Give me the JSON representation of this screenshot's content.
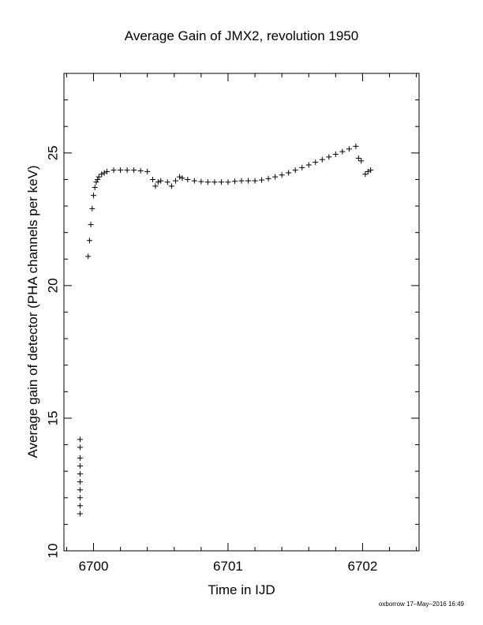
{
  "chart_data": {
    "type": "scatter",
    "title": "Average Gain of JMX2, revolution 1950",
    "xlabel": "Time in IJD",
    "ylabel": "Average gain of detector (PHA channels per keV)",
    "xlim": [
      6699.78,
      6702.42
    ],
    "ylim": [
      10,
      28
    ],
    "x_ticks": [
      6700,
      6701,
      6702
    ],
    "x_tick_labels": [
      "6700",
      "6701",
      "6702"
    ],
    "y_ticks": [
      10,
      15,
      20,
      25
    ],
    "y_tick_labels": [
      "10",
      "15",
      "20",
      "25"
    ],
    "grid": false,
    "legend": "none",
    "marker": "plus",
    "color": "#000000",
    "series": [
      {
        "x": [
          6699.9,
          6699.9,
          6699.9,
          6699.9,
          6699.9,
          6699.9,
          6699.9,
          6699.9,
          6699.9,
          6699.9,
          6699.96,
          6699.97,
          6699.98,
          6699.99,
          6700.0,
          6700.01,
          6700.02,
          6700.03,
          6700.04,
          6700.06,
          6700.08,
          6700.1,
          6700.15,
          6700.2,
          6700.25,
          6700.3,
          6700.35,
          6700.4,
          6700.44,
          6700.46,
          6700.48,
          6700.5,
          6700.55,
          6700.58,
          6700.61,
          6700.64,
          6700.66,
          6700.7,
          6700.75,
          6700.8,
          6700.85,
          6700.9,
          6700.95,
          6701.0,
          6701.05,
          6701.1,
          6701.15,
          6701.2,
          6701.25,
          6701.3,
          6701.35,
          6701.4,
          6701.45,
          6701.5,
          6701.55,
          6701.6,
          6701.65,
          6701.7,
          6701.75,
          6701.8,
          6701.85,
          6701.9,
          6701.95,
          6701.97,
          6701.99,
          6702.02,
          6702.04,
          6702.06
        ],
        "y": [
          11.4,
          11.7,
          12.0,
          12.3,
          12.6,
          12.9,
          13.2,
          13.5,
          13.9,
          14.2,
          21.1,
          21.7,
          22.3,
          22.9,
          23.4,
          23.7,
          23.9,
          24.0,
          24.1,
          24.2,
          24.25,
          24.3,
          24.35,
          24.35,
          24.35,
          24.35,
          24.33,
          24.3,
          24.0,
          23.75,
          23.9,
          23.95,
          23.9,
          23.75,
          23.95,
          24.1,
          24.05,
          24.0,
          23.95,
          23.92,
          23.9,
          23.9,
          23.9,
          23.9,
          23.93,
          23.95,
          23.95,
          23.95,
          23.98,
          24.03,
          24.1,
          24.17,
          24.25,
          24.35,
          24.45,
          24.55,
          24.65,
          24.75,
          24.85,
          24.95,
          25.05,
          25.15,
          25.25,
          24.8,
          24.7,
          24.2,
          24.3,
          24.35
        ]
      }
    ]
  },
  "footer": "oxborrow 17–May–2016 16:49"
}
